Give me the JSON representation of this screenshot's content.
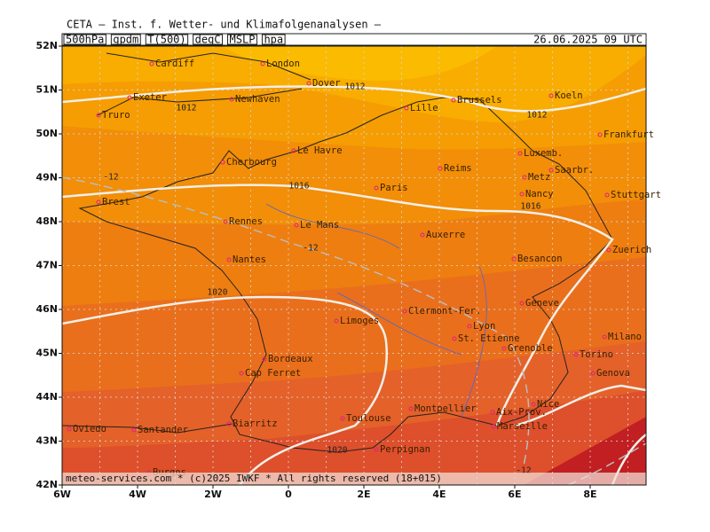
{
  "header": {
    "title": "CETA — Inst. f. Wetter- und Klimafolgenanalysen —",
    "fields": [
      "500hPa",
      "gpdm",
      "T(500)",
      "degC",
      "MSLP",
      "hpa"
    ],
    "datetime": "26.06.2025 09 UTC"
  },
  "map": {
    "lat_ticks": [
      {
        "value": 52,
        "label": "52N"
      },
      {
        "value": 51,
        "label": "51N"
      },
      {
        "value": 50,
        "label": "50N"
      },
      {
        "value": 49,
        "label": "49N"
      },
      {
        "value": 48,
        "label": "48N"
      },
      {
        "value": 47,
        "label": "47N"
      },
      {
        "value": 46,
        "label": "46N"
      },
      {
        "value": 45,
        "label": "45N"
      },
      {
        "value": 44,
        "label": "44N"
      },
      {
        "value": 43,
        "label": "43N"
      },
      {
        "value": 42,
        "label": "42N"
      }
    ],
    "lon_ticks": [
      {
        "value": -6,
        "label": "6W"
      },
      {
        "value": -4,
        "label": "4W"
      },
      {
        "value": -2,
        "label": "2W"
      },
      0,
      {
        "value": 2,
        "label": "2E"
      },
      {
        "value": 4,
        "label": "4E"
      },
      {
        "value": 6,
        "label": "6E"
      },
      {
        "value": 8,
        "label": "8E"
      }
    ],
    "cities": [
      "Cardiff",
      "London",
      "Dover",
      "Exeter",
      "Truro",
      "Newhaven",
      "Brussels",
      "Koeln",
      "Lille",
      "Frankfurt",
      "Le Havre",
      "Cherbourg",
      "Luxemb.",
      "Reims",
      "Saarbr.",
      "Metz",
      "Brest",
      "Paris",
      "Nancy",
      "Stuttgart",
      "Rennes",
      "Le Mans",
      "Auxerre",
      "Nantes",
      "Zuerich",
      "Besancon",
      "Geneve",
      "Limoges",
      "Clermont-Fer.",
      "Lyon",
      "Milano",
      "St. Etienne",
      "Grenoble",
      "Bordeaux",
      "Torino",
      "Cap Ferret",
      "Genova",
      "Nice",
      "Montpellier",
      "Aix-Prov.",
      "Toulouse",
      "Marseille",
      "Oviedo",
      "Santander",
      "Biarritz",
      "Perpignan",
      "Burgos"
    ],
    "contour_labels": [
      1012,
      1012,
      1012,
      1016,
      1016,
      1020,
      1020,
      -12,
      -12,
      -12
    ]
  },
  "footer": "meteo-services.com * (c)2025 IWKF * All rights reserved (18+015)"
}
